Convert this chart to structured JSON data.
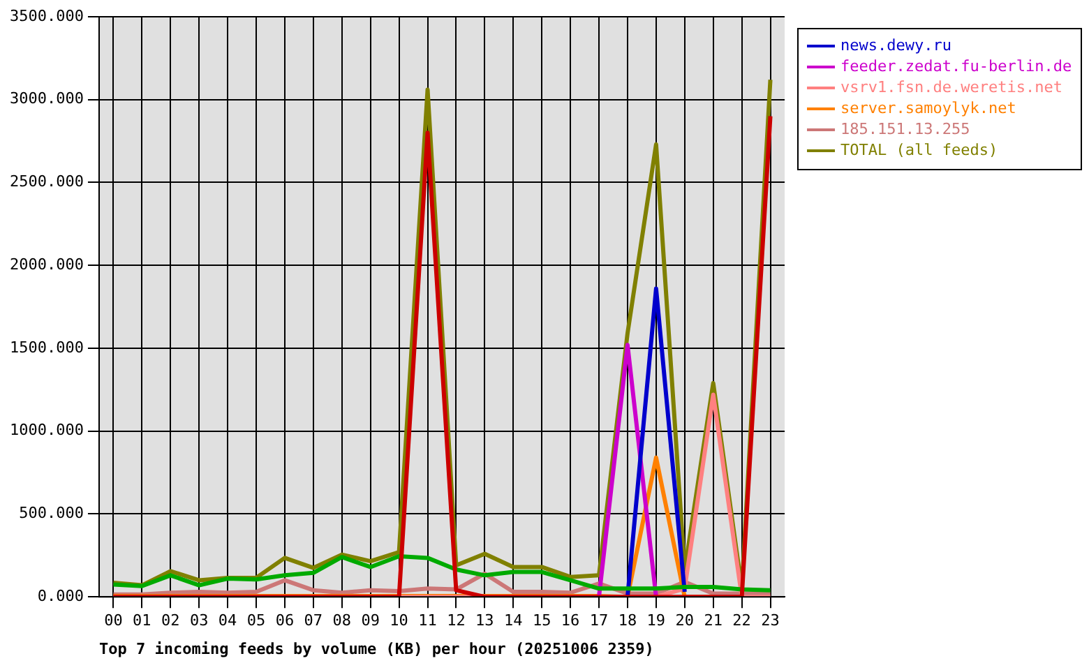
{
  "chart_data": {
    "type": "line",
    "xlabel": "Top 7 incoming feeds by volume (KB) per hour (20251006 2359)",
    "categories": [
      "00",
      "01",
      "02",
      "03",
      "04",
      "05",
      "06",
      "07",
      "08",
      "09",
      "10",
      "11",
      "12",
      "13",
      "14",
      "15",
      "16",
      "17",
      "18",
      "19",
      "20",
      "21",
      "22",
      "23"
    ],
    "ylim": [
      0,
      3500
    ],
    "yticks": [
      {
        "value": 0,
        "label": "0.000"
      },
      {
        "value": 500,
        "label": "500.000"
      },
      {
        "value": 1000,
        "label": "1000.000"
      },
      {
        "value": 1500,
        "label": "1500.000"
      },
      {
        "value": 2000,
        "label": "2000.000"
      },
      {
        "value": 2500,
        "label": "2500.000"
      },
      {
        "value": 3000,
        "label": "3000.000"
      },
      {
        "value": 3500,
        "label": "3500.000"
      }
    ],
    "grid": true,
    "legend": "right",
    "marker": "none",
    "line_style": "solid",
    "series": [
      {
        "color": "#cc0000",
        "values": [
          0,
          0,
          0,
          0,
          0,
          0,
          0,
          0,
          0,
          0,
          0,
          2800,
          40,
          0,
          0,
          0,
          0,
          0,
          0,
          0,
          0,
          0,
          0,
          2900
        ]
      },
      {
        "color": "#00aa00",
        "values": [
          75,
          65,
          130,
          70,
          110,
          105,
          130,
          145,
          240,
          180,
          245,
          235,
          165,
          130,
          150,
          150,
          100,
          50,
          50,
          50,
          60,
          60,
          45,
          40
        ]
      },
      {
        "name": "news.dewy.ru",
        "color": "#0000cc",
        "values": [
          null,
          null,
          null,
          null,
          null,
          null,
          null,
          null,
          null,
          null,
          null,
          null,
          null,
          null,
          null,
          null,
          null,
          null,
          0,
          1860,
          30,
          null,
          null,
          null
        ]
      },
      {
        "name": "feeder.zedat.fu-berlin.de",
        "color": "#cc00cc",
        "values": [
          null,
          null,
          null,
          null,
          null,
          null,
          null,
          null,
          null,
          null,
          null,
          null,
          null,
          null,
          null,
          null,
          null,
          0,
          1520,
          0,
          null,
          null,
          null,
          null
        ]
      },
      {
        "name": "vsrv1.fsn.de.weretis.net",
        "color": "#ff8080",
        "values": [
          0,
          0,
          0,
          0,
          0,
          0,
          0,
          0,
          0,
          0,
          0,
          0,
          0,
          0,
          0,
          0,
          0,
          0,
          0,
          0,
          50,
          1220,
          0,
          0
        ]
      },
      {
        "name": "server.samoylyk.net",
        "color": "#ff8000",
        "values": [
          5,
          5,
          5,
          5,
          5,
          5,
          5,
          5,
          5,
          5,
          5,
          5,
          5,
          5,
          5,
          5,
          5,
          5,
          0,
          840,
          0,
          0,
          null,
          null
        ]
      },
      {
        "name": "185.151.13.255",
        "color": "#cc7777",
        "values": [
          15,
          15,
          25,
          30,
          25,
          30,
          100,
          40,
          25,
          40,
          35,
          50,
          45,
          140,
          30,
          30,
          25,
          80,
          20,
          20,
          90,
          20,
          20,
          20
        ]
      },
      {
        "name": "TOTAL (all feeds)",
        "color": "#808000",
        "values": [
          85,
          70,
          155,
          100,
          115,
          115,
          235,
          175,
          255,
          215,
          270,
          3060,
          190,
          260,
          180,
          180,
          120,
          130,
          1590,
          2730,
          160,
          1290,
          50,
          3120
        ]
      }
    ]
  }
}
